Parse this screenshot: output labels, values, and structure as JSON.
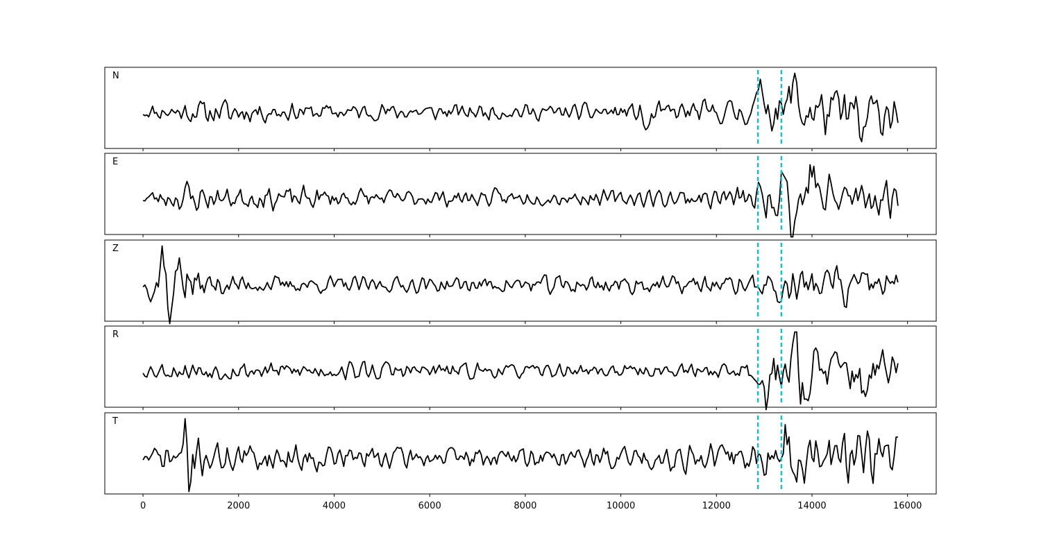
{
  "chart_data": {
    "type": "line",
    "xlim": [
      -800,
      16600
    ],
    "x_ticks": [
      0,
      2000,
      4000,
      6000,
      8000,
      10000,
      12000,
      14000,
      16000
    ],
    "x_tick_labels": [
      "0",
      "2000",
      "4000",
      "6000",
      "8000",
      "10000",
      "12000",
      "14000",
      "16000"
    ],
    "x_range": [
      0,
      15800
    ],
    "sample_step": 40,
    "line_color": "#000000",
    "marker_color": "#17becf",
    "markers_x": [
      12870,
      13360
    ],
    "grid": false,
    "panels": [
      {
        "label": "N",
        "seed": 11,
        "noise_base": 0.16,
        "env": [
          [
            0,
            0.22
          ],
          [
            700,
            0.35
          ],
          [
            1600,
            0.45
          ],
          [
            3000,
            0.3
          ],
          [
            6000,
            0.28
          ],
          [
            9000,
            0.25
          ],
          [
            10500,
            0.32
          ],
          [
            12000,
            0.38
          ],
          [
            12870,
            0.5
          ],
          [
            13300,
            0.8
          ],
          [
            13600,
            0.95
          ],
          [
            15800,
            0.75
          ]
        ],
        "events": [
          [
            10550,
            -0.45,
            70
          ],
          [
            13620,
            0.95,
            60
          ],
          [
            12950,
            0.6,
            80
          ],
          [
            15050,
            -0.7,
            60
          ]
        ]
      },
      {
        "label": "E",
        "seed": 23,
        "noise_base": 0.16,
        "env": [
          [
            0,
            0.22
          ],
          [
            600,
            0.4
          ],
          [
            900,
            0.6
          ],
          [
            1500,
            0.35
          ],
          [
            3200,
            0.4
          ],
          [
            5000,
            0.28
          ],
          [
            9000,
            0.25
          ],
          [
            11500,
            0.3
          ],
          [
            12500,
            0.42
          ],
          [
            12870,
            0.5
          ],
          [
            13300,
            0.8
          ],
          [
            13600,
            1.0
          ],
          [
            15800,
            0.6
          ]
        ],
        "events": [
          [
            13400,
            0.9,
            60
          ],
          [
            13600,
            -0.95,
            60
          ],
          [
            14000,
            0.8,
            70
          ]
        ]
      },
      {
        "label": "Z",
        "seed": 37,
        "noise_base": 0.14,
        "env": [
          [
            0,
            0.2
          ],
          [
            350,
            0.95
          ],
          [
            800,
            0.9
          ],
          [
            1300,
            0.4
          ],
          [
            2500,
            0.3
          ],
          [
            6000,
            0.25
          ],
          [
            8000,
            0.3
          ],
          [
            9000,
            0.35
          ],
          [
            11000,
            0.3
          ],
          [
            12870,
            0.32
          ],
          [
            13400,
            0.55
          ],
          [
            15800,
            0.5
          ]
        ],
        "events": [
          [
            420,
            0.95,
            40
          ],
          [
            580,
            -0.95,
            40
          ],
          [
            780,
            0.9,
            40
          ],
          [
            13350,
            -0.45,
            60
          ],
          [
            14550,
            0.5,
            60
          ],
          [
            14650,
            -0.55,
            60
          ]
        ]
      },
      {
        "label": "R",
        "seed": 53,
        "noise_base": 0.15,
        "env": [
          [
            0,
            0.22
          ],
          [
            1000,
            0.35
          ],
          [
            3500,
            0.3
          ],
          [
            5000,
            0.33
          ],
          [
            8000,
            0.22
          ],
          [
            11000,
            0.22
          ],
          [
            12500,
            0.3
          ],
          [
            12870,
            0.5
          ],
          [
            13300,
            0.85
          ],
          [
            13600,
            1.0
          ],
          [
            15800,
            0.7
          ]
        ],
        "events": [
          [
            13050,
            -0.85,
            70
          ],
          [
            13620,
            0.95,
            60
          ],
          [
            13900,
            -0.7,
            60
          ],
          [
            15050,
            -0.6,
            60
          ]
        ]
      },
      {
        "label": "T",
        "seed": 71,
        "noise_base": 0.15,
        "env": [
          [
            0,
            0.25
          ],
          [
            700,
            0.55
          ],
          [
            900,
            0.9
          ],
          [
            1300,
            0.5
          ],
          [
            4000,
            0.45
          ],
          [
            6000,
            0.35
          ],
          [
            9000,
            0.35
          ],
          [
            12000,
            0.5
          ],
          [
            12870,
            0.6
          ],
          [
            13300,
            0.9
          ],
          [
            13600,
            1.0
          ],
          [
            15800,
            0.85
          ]
        ],
        "events": [
          [
            900,
            0.95,
            40
          ],
          [
            960,
            -0.95,
            40
          ],
          [
            13380,
            -0.95,
            60
          ],
          [
            13450,
            0.95,
            60
          ]
        ]
      }
    ]
  }
}
